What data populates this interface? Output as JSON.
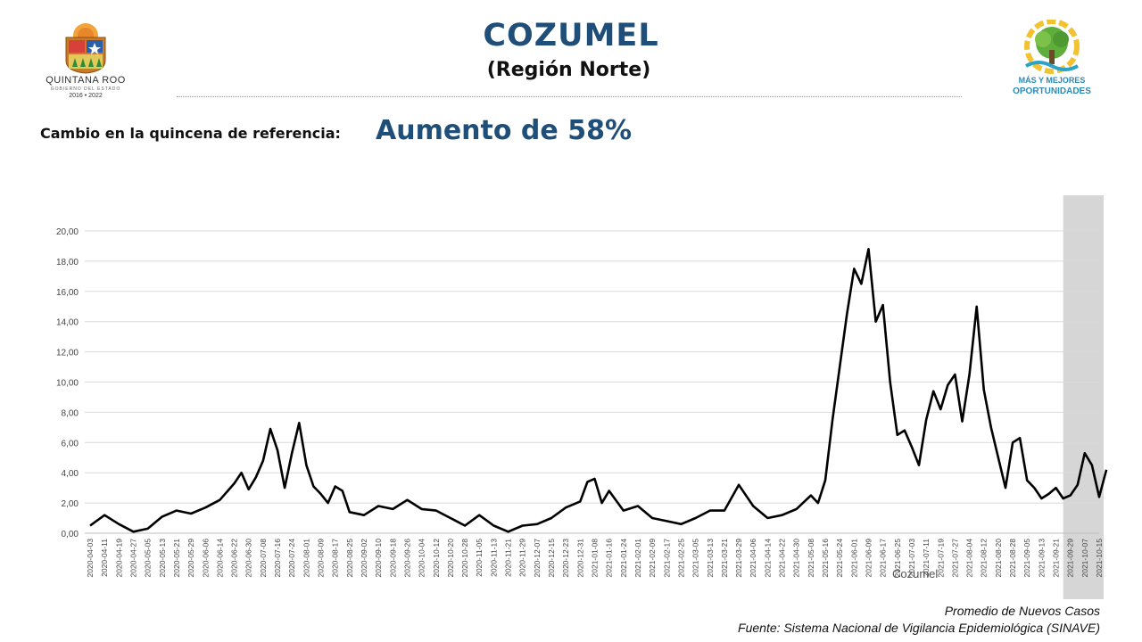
{
  "header": {
    "title": "COZUMEL",
    "subtitle": "(Región Norte)",
    "change_label": "Cambio en la quincena de referencia:",
    "change_value": "Aumento de 58%"
  },
  "logos": {
    "left": {
      "state": "QUINTANA ROO",
      "gov": "GOBIERNO DEL ESTADO",
      "years": "2016 • 2022"
    },
    "right": {
      "line1": "MÁS Y MEJORES",
      "line2": "OPORTUNIDADES"
    }
  },
  "footer": {
    "line1": "Promedio de Nuevos Casos",
    "line2": "Fuente: Sistema Nacional de Vigilancia Epidemiológica (SINAVE)"
  },
  "colors": {
    "title": "#1f4e79",
    "line": "#000000",
    "highlight": "#d6d6d6",
    "grid": "#d9d9d9"
  },
  "chart_data": {
    "type": "line",
    "series": [
      {
        "name": "Cozumel"
      }
    ],
    "ylim": [
      0,
      20
    ],
    "yticks": [
      "0,00",
      "2,00",
      "4,00",
      "6,00",
      "8,00",
      "10,00",
      "12,00",
      "14,00",
      "16,00",
      "18,00",
      "20,00"
    ],
    "grid": true,
    "highlight_region": [
      "2021-09-29",
      "2021-10-19"
    ],
    "categories": [
      "2020-04-03",
      "2020-04-11",
      "2020-04-19",
      "2020-04-27",
      "2020-05-05",
      "2020-05-13",
      "2020-05-21",
      "2020-05-29",
      "2020-06-06",
      "2020-06-14",
      "2020-06-22",
      "2020-06-30",
      "2020-07-08",
      "2020-07-16",
      "2020-07-24",
      "2020-08-01",
      "2020-08-09",
      "2020-08-17",
      "2020-08-25",
      "2020-09-02",
      "2020-09-10",
      "2020-09-18",
      "2020-09-26",
      "2020-10-04",
      "2020-10-12",
      "2020-10-20",
      "2020-10-28",
      "2020-11-05",
      "2020-11-13",
      "2020-11-21",
      "2020-11-29",
      "2020-12-07",
      "2020-12-15",
      "2020-12-23",
      "2020-12-31",
      "2021-01-08",
      "2021-01-16",
      "2021-01-24",
      "2021-02-01",
      "2021-02-09",
      "2021-02-17",
      "2021-02-25",
      "2021-03-05",
      "2021-03-13",
      "2021-03-21",
      "2021-03-29",
      "2021-04-06",
      "2021-04-14",
      "2021-04-22",
      "2021-04-30",
      "2021-05-08",
      "2021-05-16",
      "2021-05-24",
      "2021-06-01",
      "2021-06-09",
      "2021-06-17",
      "2021-06-25",
      "2021-07-03",
      "2021-07-11",
      "2021-07-19",
      "2021-07-27",
      "2021-08-04",
      "2021-08-12",
      "2021-08-20",
      "2021-08-28",
      "2021-09-05",
      "2021-09-13",
      "2021-09-21",
      "2021-09-29",
      "2021-10-07",
      "2021-10-15"
    ],
    "x": [
      "2020-04-03",
      "2020-04-11",
      "2020-04-19",
      "2020-04-27",
      "2020-05-05",
      "2020-05-13",
      "2020-05-21",
      "2020-05-29",
      "2020-06-06",
      "2020-06-14",
      "2020-06-22",
      "2020-06-26",
      "2020-06-30",
      "2020-07-04",
      "2020-07-08",
      "2020-07-12",
      "2020-07-16",
      "2020-07-20",
      "2020-07-24",
      "2020-07-28",
      "2020-08-01",
      "2020-08-05",
      "2020-08-09",
      "2020-08-13",
      "2020-08-17",
      "2020-08-21",
      "2020-08-25",
      "2020-09-02",
      "2020-09-10",
      "2020-09-18",
      "2020-09-26",
      "2020-10-04",
      "2020-10-12",
      "2020-10-20",
      "2020-10-28",
      "2020-11-05",
      "2020-11-13",
      "2020-11-21",
      "2020-11-29",
      "2020-12-07",
      "2020-12-15",
      "2020-12-23",
      "2020-12-31",
      "2021-01-04",
      "2021-01-08",
      "2021-01-12",
      "2021-01-16",
      "2021-01-24",
      "2021-02-01",
      "2021-02-09",
      "2021-02-17",
      "2021-02-25",
      "2021-03-05",
      "2021-03-13",
      "2021-03-21",
      "2021-03-29",
      "2021-04-06",
      "2021-04-14",
      "2021-04-22",
      "2021-04-30",
      "2021-05-08",
      "2021-05-12",
      "2021-05-16",
      "2021-05-20",
      "2021-05-24",
      "2021-05-28",
      "2021-06-01",
      "2021-06-05",
      "2021-06-09",
      "2021-06-13",
      "2021-06-17",
      "2021-06-21",
      "2021-06-25",
      "2021-06-29",
      "2021-07-03",
      "2021-07-07",
      "2021-07-11",
      "2021-07-15",
      "2021-07-19",
      "2021-07-23",
      "2021-07-27",
      "2021-07-31",
      "2021-08-04",
      "2021-08-08",
      "2021-08-12",
      "2021-08-16",
      "2021-08-20",
      "2021-08-24",
      "2021-08-28",
      "2021-09-01",
      "2021-09-05",
      "2021-09-09",
      "2021-09-13",
      "2021-09-17",
      "2021-09-21",
      "2021-09-25",
      "2021-09-29",
      "2021-10-03",
      "2021-10-07",
      "2021-10-11",
      "2021-10-15",
      "2021-10-19"
    ],
    "y": [
      0.5,
      1.2,
      0.6,
      0.1,
      0.3,
      1.1,
      1.5,
      1.3,
      1.7,
      2.2,
      3.3,
      4.0,
      2.9,
      3.7,
      4.8,
      6.9,
      5.5,
      3.0,
      5.3,
      7.3,
      4.5,
      3.1,
      2.6,
      2.0,
      3.1,
      2.8,
      1.4,
      1.2,
      1.8,
      1.6,
      2.2,
      1.6,
      1.5,
      1.0,
      0.5,
      1.2,
      0.5,
      0.1,
      0.5,
      0.6,
      1.0,
      1.7,
      2.1,
      3.4,
      3.6,
      2.0,
      2.8,
      1.5,
      1.8,
      1.0,
      0.8,
      0.6,
      1.0,
      1.5,
      1.5,
      3.2,
      1.8,
      1.0,
      1.2,
      1.6,
      2.5,
      2.0,
      3.5,
      7.5,
      11.0,
      14.5,
      17.5,
      16.5,
      18.8,
      14.0,
      15.1,
      10.0,
      6.5,
      6.8,
      5.7,
      4.5,
      7.5,
      9.4,
      8.2,
      9.8,
      10.5,
      7.4,
      10.5,
      15.0,
      9.5,
      7.0,
      5.0,
      3.0,
      6.0,
      6.3,
      3.5,
      3.0,
      2.3,
      2.6,
      3.0,
      2.3,
      2.5,
      3.2,
      5.3,
      4.5,
      2.4,
      4.2
    ]
  }
}
